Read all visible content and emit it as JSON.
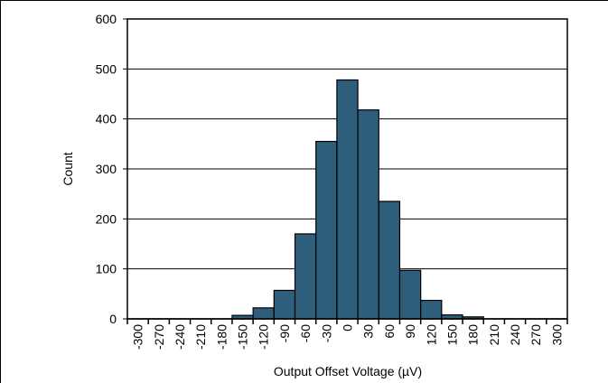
{
  "chart_data": {
    "type": "bar",
    "xlabel": "Output Offset Voltage (µV)",
    "ylabel": "Count",
    "categories": [
      "-300",
      "-270",
      "-240",
      "-210",
      "-180",
      "-150",
      "-120",
      "-90",
      "-60",
      "-30",
      "0",
      "30",
      "60",
      "90",
      "120",
      "150",
      "180",
      "210",
      "240",
      "270",
      "300"
    ],
    "values": [
      0,
      0,
      0,
      0,
      0,
      7,
      22,
      57,
      170,
      355,
      478,
      418,
      235,
      97,
      37,
      8,
      4,
      0,
      0,
      0,
      0
    ],
    "color": "#2e5e7c",
    "ylim": [
      0,
      600
    ],
    "yticks": [
      0,
      100,
      200,
      300,
      400,
      500,
      600
    ],
    "grid": true
  }
}
